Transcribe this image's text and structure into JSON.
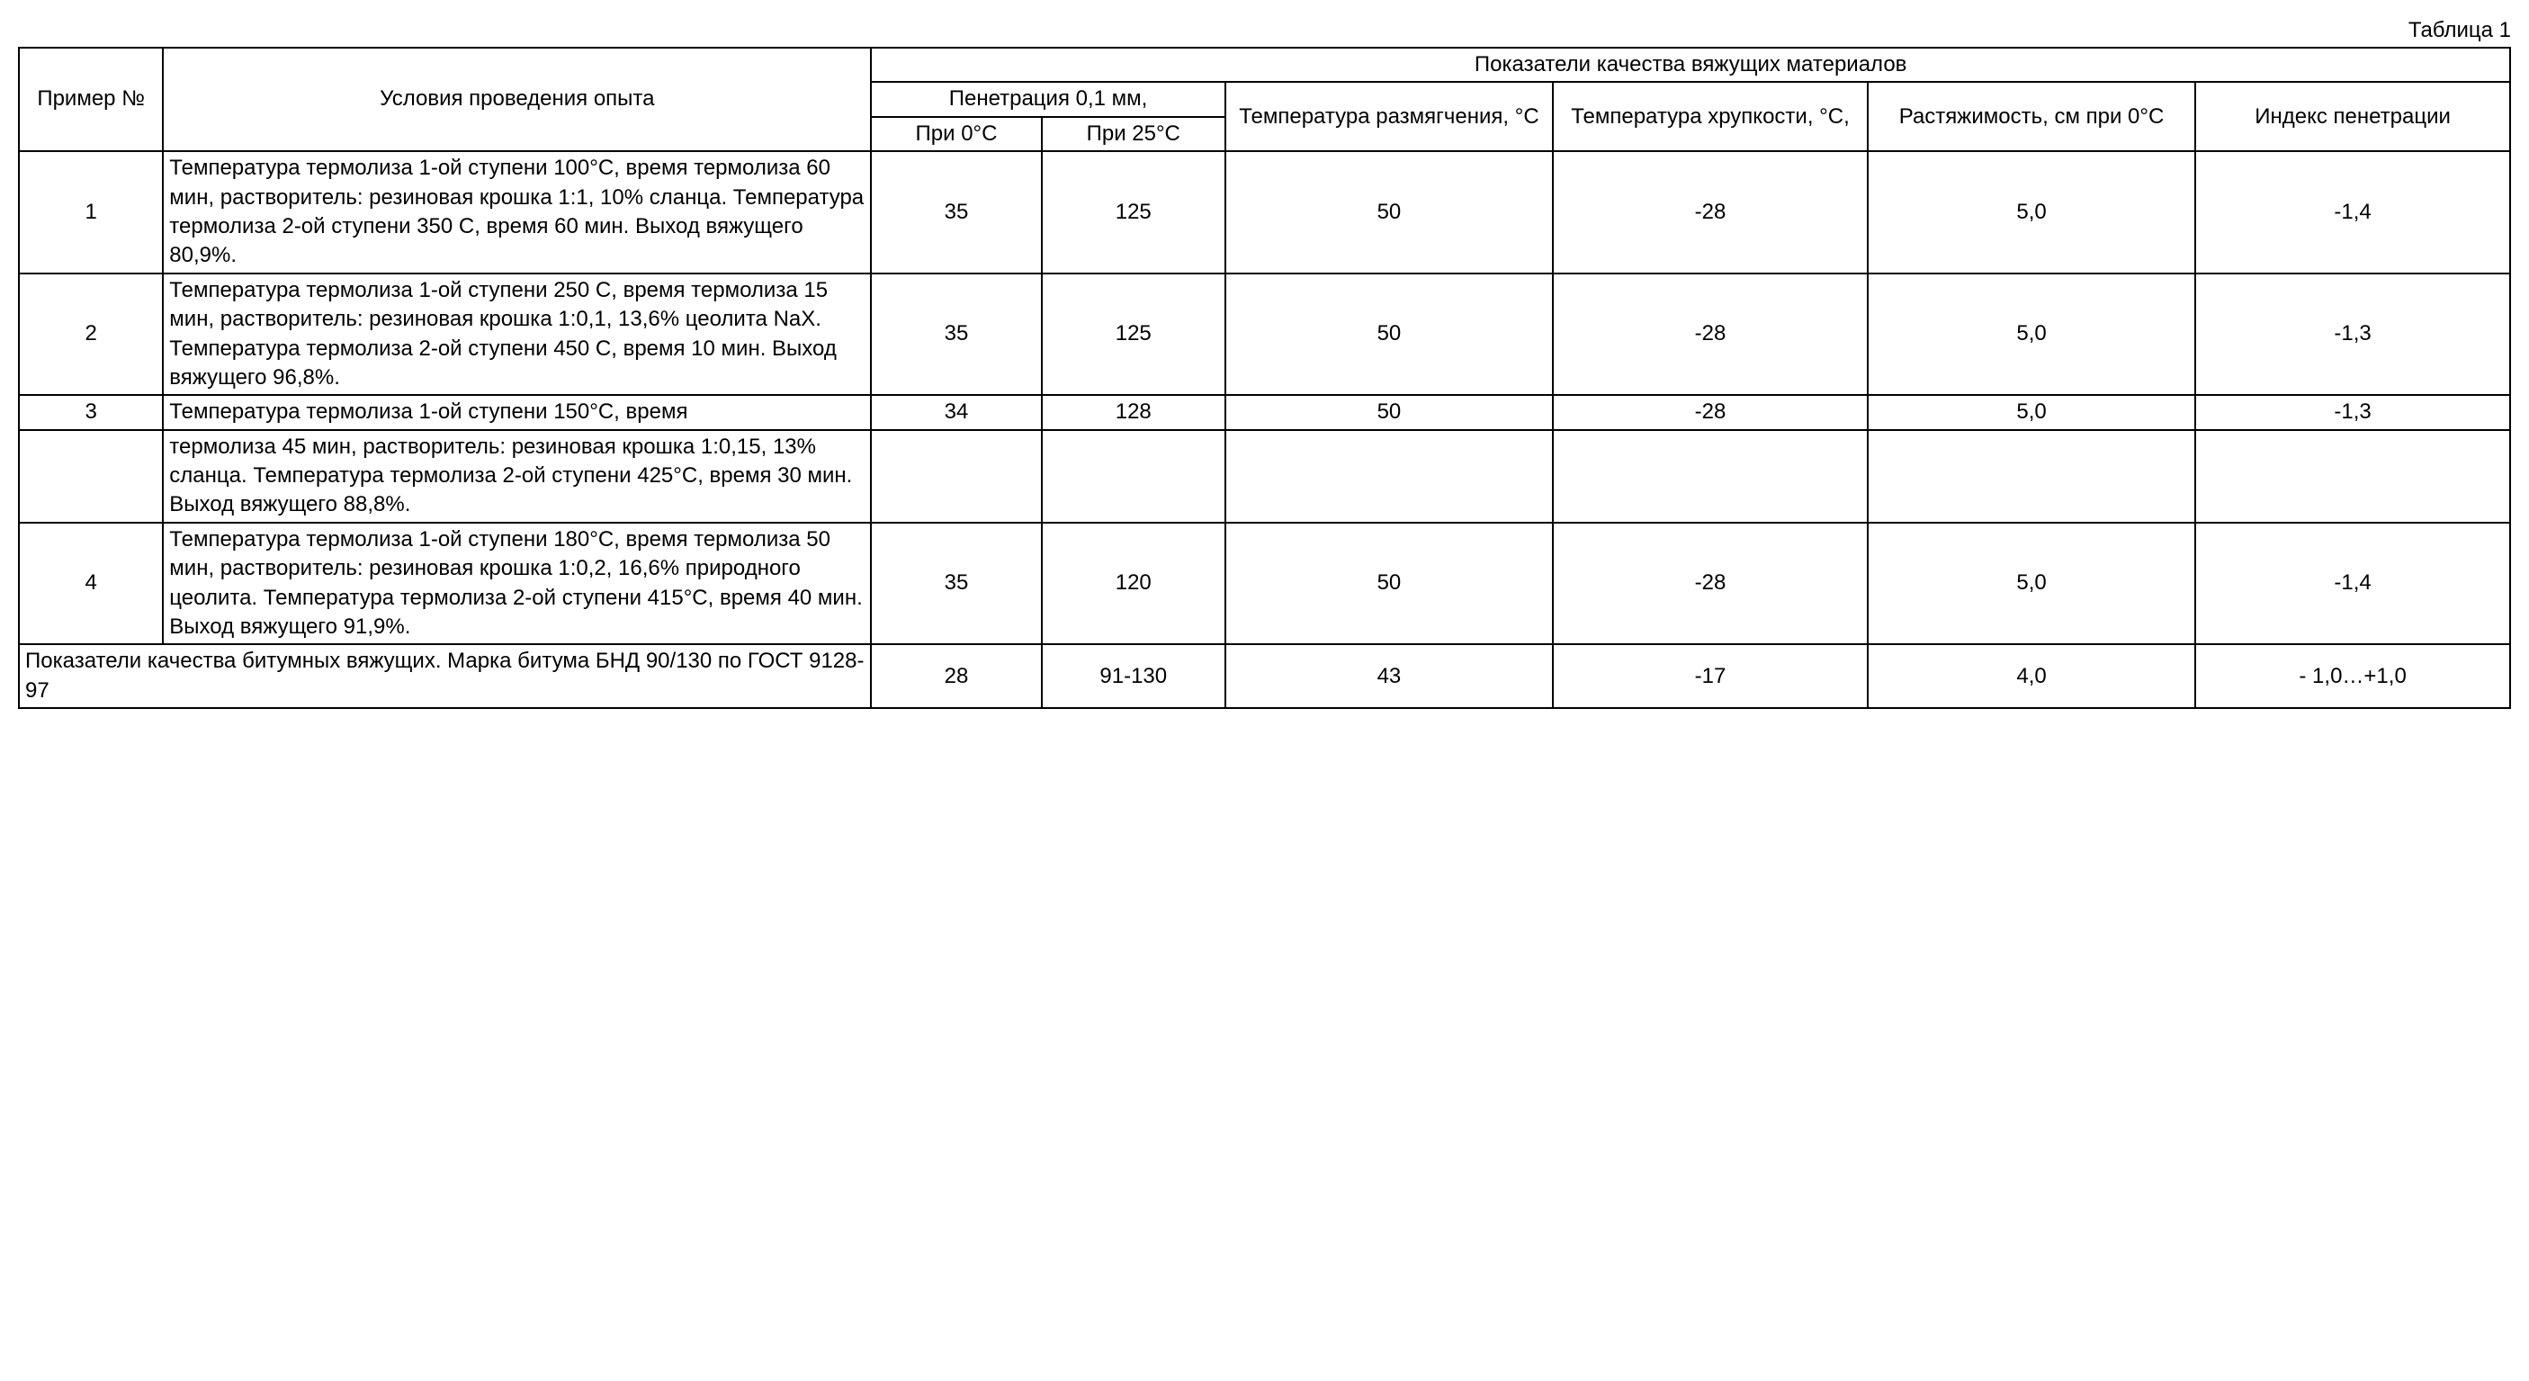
{
  "caption": "Таблица 1",
  "headers": {
    "example_no": "Пример №",
    "conditions": "Условия проведения опыта",
    "quality_group": "Показатели качества вяжущих материалов",
    "penetration": "Пенетрация 0,1 мм,",
    "pen_at_0": "При 0°С",
    "pen_at_25": "При 25°С",
    "softening": "Температура размягчения, °С",
    "brittleness": "Температура хрупкости, °С,",
    "extensibility": "Растяжимость, см при 0°С",
    "pen_index": "Индекс пенетрации"
  },
  "rows": [
    {
      "no": "1",
      "cond": "Температура термолиза 1-ой ступени 100°С, время термолиза 60 мин, рас­творитель: резиновая крошка 1:1, 10% сланца. Температура термолиза 2-ой ступени 350 С, время 60 мин. Выход вяжущего 80,9%.",
      "p0": "35",
      "p25": "125",
      "soft": "50",
      "brit": "-28",
      "ext": "5,0",
      "idx": "-1,4"
    },
    {
      "no": "2",
      "cond": "Температура термолиза 1-ой ступени 250 С, время термолиза 15 мин, рас­творитель: резиновая крошка 1:0,1, 13,6% цеолита NaX. Температура термолиза 2-ой ступени 450 С, время 10 мин. Выход вяжущего 96,8%.",
      "p0": "35",
      "p25": "125",
      "soft": "50",
      "brit": "-28",
      "ext": "5,0",
      "idx": "-1,3"
    },
    {
      "no": "3",
      "cond": "Температура термолиза 1-ой ступени 150°С, время",
      "p0": "34",
      "p25": "128",
      "soft": "50",
      "brit": "-28",
      "ext": "5,0",
      "idx": "-1,3"
    },
    {
      "no": "",
      "cond": "термолиза 45 мин, растворитель: ре­зиновая крошка 1:0,15, 13% сланца. Температура термолиза 2-ой ступени 425°С, время 30 мин. Выход вяжущего 88,8%.",
      "p0": "",
      "p25": "",
      "soft": "",
      "brit": "",
      "ext": "",
      "idx": ""
    },
    {
      "no": "4",
      "cond": "Температура термолиза 1-ой ступени 180°С, время термолиза 50 мин, рас­творитель: резиновая крошка 1:0,2, 16,6% природного цеолита. Темпера­тура термолиза 2-ой ступени 415°С, время 40 мин. Выход вяжущего 91,9%.",
      "p0": "35",
      "p25": "120",
      "soft": "50",
      "brit": "-28",
      "ext": "5,0",
      "idx": "-1,4"
    }
  ],
  "footer": {
    "label": "Показатели качества битумных вяжущих. Мар­ка битума БНД 90/130 по ГОСТ 9128-97",
    "p0": "28",
    "p25": "91-130",
    "soft": "43",
    "brit": "-17",
    "ext": "4,0",
    "idx": "- 1,0…+1,0"
  }
}
